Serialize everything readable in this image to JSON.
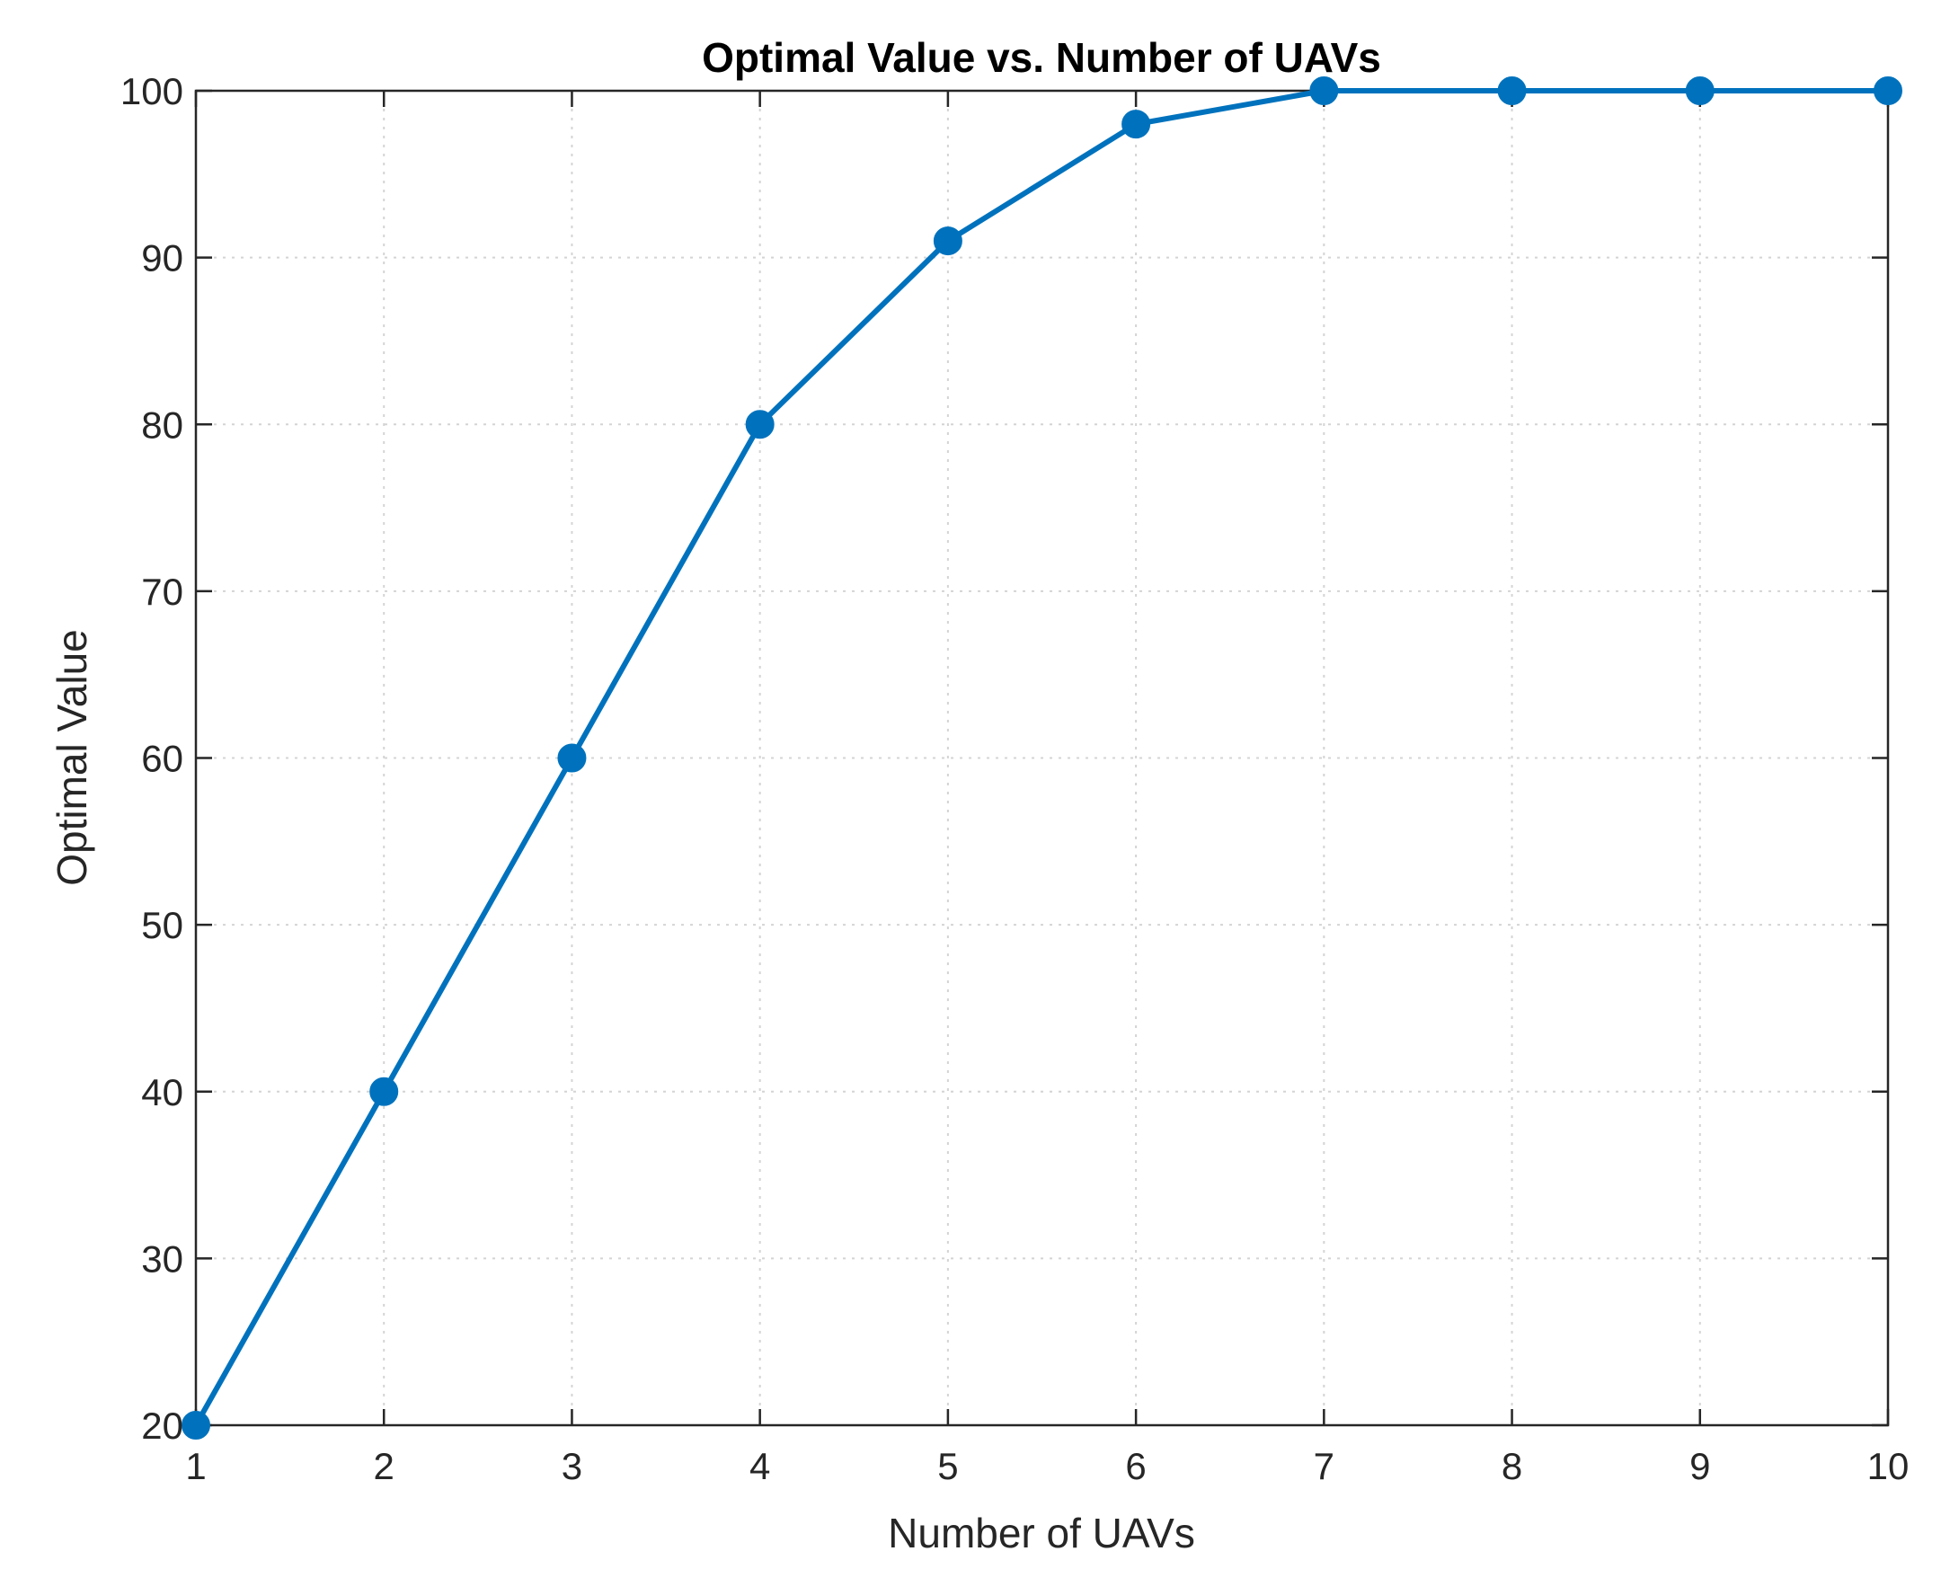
{
  "chart_data": {
    "type": "line",
    "title": "Optimal Value vs. Number of UAVs",
    "xlabel": "Number of UAVs",
    "ylabel": "Optimal Value",
    "x": [
      1,
      2,
      3,
      4,
      5,
      6,
      7,
      8,
      9,
      10
    ],
    "series": [
      {
        "values": [
          20,
          40,
          60,
          80,
          91,
          98,
          100,
          100,
          100,
          100
        ],
        "color": "#0072BD",
        "marker": "circle"
      }
    ],
    "xlim": [
      1,
      10
    ],
    "ylim": [
      20,
      100
    ],
    "xticks": [
      1,
      2,
      3,
      4,
      5,
      6,
      7,
      8,
      9,
      10
    ],
    "yticks": [
      20,
      30,
      40,
      50,
      60,
      70,
      80,
      90,
      100
    ],
    "grid": true,
    "legend": "none"
  }
}
